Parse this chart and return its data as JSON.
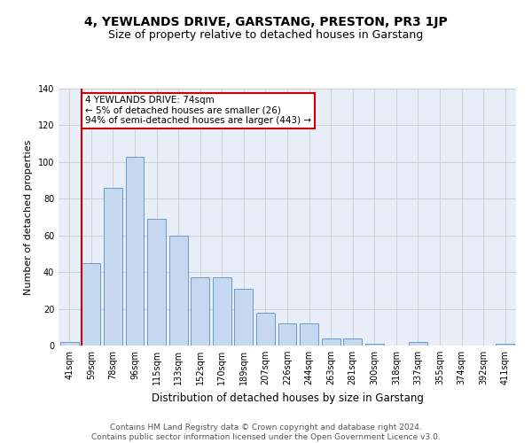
{
  "title": "4, YEWLANDS DRIVE, GARSTANG, PRESTON, PR3 1JP",
  "subtitle": "Size of property relative to detached houses in Garstang",
  "xlabel": "Distribution of detached houses by size in Garstang",
  "ylabel": "Number of detached properties",
  "categories": [
    "41sqm",
    "59sqm",
    "78sqm",
    "96sqm",
    "115sqm",
    "133sqm",
    "152sqm",
    "170sqm",
    "189sqm",
    "207sqm",
    "226sqm",
    "244sqm",
    "263sqm",
    "281sqm",
    "300sqm",
    "318sqm",
    "337sqm",
    "355sqm",
    "374sqm",
    "392sqm",
    "411sqm"
  ],
  "values": [
    2,
    45,
    86,
    103,
    69,
    60,
    37,
    37,
    31,
    18,
    12,
    12,
    4,
    4,
    1,
    0,
    2,
    0,
    0,
    0,
    1
  ],
  "bar_color": "#c5d8f0",
  "bar_edge_color": "#5a8fc2",
  "vline_color": "#cc0000",
  "annotation_box_text": "4 YEWLANDS DRIVE: 74sqm\n← 5% of detached houses are smaller (26)\n94% of semi-detached houses are larger (443) →",
  "annotation_box_color": "#cc0000",
  "ylim": [
    0,
    140
  ],
  "yticks": [
    0,
    20,
    40,
    60,
    80,
    100,
    120,
    140
  ],
  "grid_color": "#cccccc",
  "bg_color": "#e8eef8",
  "background_color": "#ffffff",
  "footer_text": "Contains HM Land Registry data © Crown copyright and database right 2024.\nContains public sector information licensed under the Open Government Licence v3.0.",
  "title_fontsize": 10,
  "subtitle_fontsize": 9,
  "xlabel_fontsize": 8.5,
  "ylabel_fontsize": 8,
  "tick_fontsize": 7,
  "annotation_fontsize": 7.5,
  "footer_fontsize": 6.5
}
